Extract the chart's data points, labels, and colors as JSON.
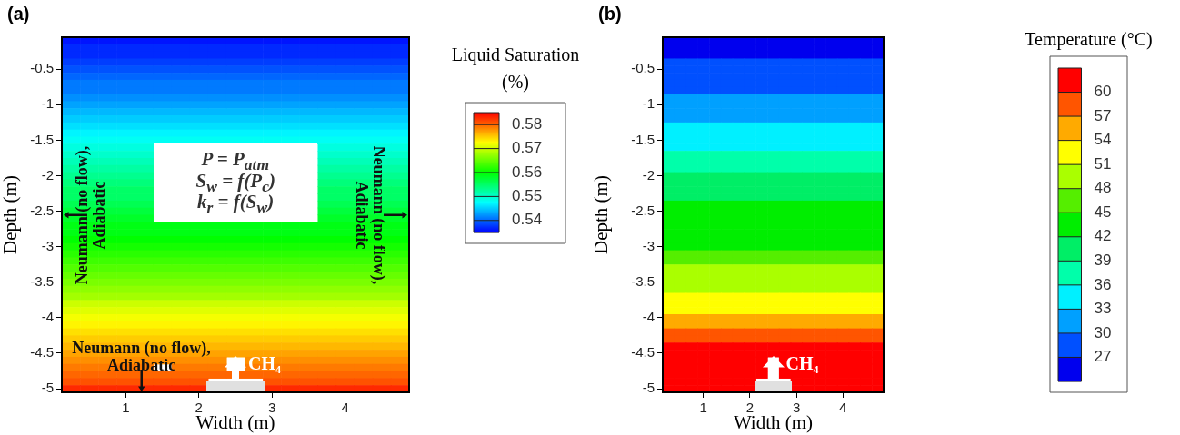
{
  "chart_data": [
    {
      "type": "heatmap",
      "title": "(a)",
      "xlabel": "Width (m)",
      "ylabel": "Depth (m)",
      "clabel": "Liquid Saturation (%)",
      "categories": [
        null,
        null,
        null,
        "1",
        null,
        null,
        null,
        "2",
        null,
        null,
        null,
        "3",
        null,
        null,
        null,
        "4",
        null,
        null,
        null
      ],
      "y_categories": [
        null,
        null,
        null,
        null,
        "-0.5",
        null,
        null,
        null,
        null,
        "-1",
        null,
        null,
        null,
        null,
        "-1.5",
        null,
        null,
        null,
        null,
        "-2",
        null,
        null,
        null,
        null,
        "-2.5",
        null,
        null,
        null,
        null,
        "-3",
        null,
        null,
        null,
        null,
        "-3.5",
        null,
        null,
        null,
        null,
        "-4",
        null,
        null,
        null,
        null,
        "-4.5",
        null,
        null,
        null,
        null,
        "-5"
      ],
      "cells": [
        [
          0.536,
          0.536,
          0.536,
          0.536,
          0.536,
          0.536,
          0.536,
          0.536,
          0.536,
          0.536,
          0.536,
          0.536,
          0.536,
          0.536,
          0.536,
          0.536,
          0.536,
          0.536,
          0.536
        ],
        [
          0.537,
          0.537,
          0.537,
          0.537,
          0.537,
          0.537,
          0.537,
          0.537,
          0.537,
          0.537,
          0.537,
          0.537,
          0.537,
          0.537,
          0.537,
          0.537,
          0.537,
          0.537,
          0.537
        ],
        [
          0.537,
          0.537,
          0.537,
          0.537,
          0.537,
          0.537,
          0.537,
          0.537,
          0.537,
          0.537,
          0.537,
          0.537,
          0.537,
          0.537,
          0.537,
          0.537,
          0.537,
          0.537,
          0.537
        ],
        [
          0.538,
          0.538,
          0.538,
          0.538,
          0.538,
          0.538,
          0.538,
          0.538,
          0.538,
          0.538,
          0.538,
          0.538,
          0.538,
          0.538,
          0.538,
          0.538,
          0.538,
          0.538,
          0.538
        ],
        [
          0.539,
          0.539,
          0.539,
          0.539,
          0.539,
          0.539,
          0.539,
          0.539,
          0.539,
          0.539,
          0.539,
          0.539,
          0.539,
          0.539,
          0.539,
          0.539,
          0.539,
          0.539,
          0.539
        ],
        [
          0.54,
          0.54,
          0.54,
          0.54,
          0.54,
          0.54,
          0.54,
          0.54,
          0.54,
          0.54,
          0.54,
          0.54,
          0.54,
          0.54,
          0.54,
          0.54,
          0.54,
          0.54,
          0.54
        ],
        [
          0.541,
          0.541,
          0.541,
          0.541,
          0.541,
          0.541,
          0.541,
          0.541,
          0.541,
          0.541,
          0.541,
          0.541,
          0.541,
          0.541,
          0.541,
          0.541,
          0.541,
          0.541,
          0.541
        ],
        [
          0.541,
          0.541,
          0.541,
          0.541,
          0.541,
          0.541,
          0.541,
          0.541,
          0.541,
          0.541,
          0.541,
          0.541,
          0.541,
          0.541,
          0.541,
          0.541,
          0.541,
          0.541,
          0.541
        ],
        [
          0.542,
          0.542,
          0.542,
          0.542,
          0.542,
          0.542,
          0.542,
          0.542,
          0.542,
          0.542,
          0.542,
          0.542,
          0.542,
          0.542,
          0.542,
          0.542,
          0.542,
          0.542,
          0.542
        ],
        [
          0.543,
          0.543,
          0.543,
          0.543,
          0.543,
          0.543,
          0.543,
          0.543,
          0.543,
          0.543,
          0.543,
          0.543,
          0.543,
          0.543,
          0.543,
          0.543,
          0.543,
          0.543,
          0.543
        ],
        [
          0.544,
          0.544,
          0.544,
          0.544,
          0.544,
          0.544,
          0.544,
          0.544,
          0.544,
          0.544,
          0.544,
          0.544,
          0.544,
          0.544,
          0.544,
          0.544,
          0.544,
          0.544,
          0.544
        ],
        [
          0.545,
          0.545,
          0.545,
          0.545,
          0.545,
          0.545,
          0.545,
          0.545,
          0.545,
          0.545,
          0.545,
          0.545,
          0.545,
          0.545,
          0.545,
          0.545,
          0.545,
          0.545,
          0.545
        ],
        [
          0.546,
          0.546,
          0.546,
          0.546,
          0.546,
          0.546,
          0.546,
          0.546,
          0.546,
          0.546,
          0.546,
          0.546,
          0.546,
          0.546,
          0.546,
          0.546,
          0.546,
          0.546,
          0.546
        ],
        [
          0.547,
          0.547,
          0.547,
          0.547,
          0.547,
          0.547,
          0.547,
          0.547,
          0.547,
          0.547,
          0.547,
          0.547,
          0.547,
          0.547,
          0.547,
          0.547,
          0.547,
          0.547,
          0.547
        ],
        [
          0.548,
          0.548,
          0.548,
          0.548,
          0.548,
          0.548,
          0.548,
          0.548,
          0.548,
          0.548,
          0.548,
          0.548,
          0.548,
          0.548,
          0.548,
          0.548,
          0.548,
          0.548,
          0.548
        ],
        [
          0.549,
          0.549,
          0.549,
          0.549,
          0.549,
          null,
          null,
          null,
          null,
          null,
          null,
          null,
          null,
          null,
          0.549,
          0.549,
          0.549,
          0.549,
          0.549
        ],
        [
          0.55,
          0.55,
          0.55,
          0.55,
          0.55,
          null,
          null,
          null,
          null,
          null,
          null,
          null,
          null,
          null,
          0.55,
          0.55,
          0.55,
          0.55,
          0.55
        ],
        [
          0.551,
          0.551,
          0.551,
          0.551,
          0.551,
          null,
          null,
          null,
          null,
          null,
          null,
          null,
          null,
          null,
          0.551,
          0.551,
          0.551,
          0.551,
          0.551
        ],
        [
          0.552,
          0.552,
          0.552,
          0.552,
          0.552,
          null,
          null,
          null,
          null,
          null,
          null,
          null,
          null,
          null,
          0.552,
          0.552,
          0.552,
          0.552,
          0.552
        ],
        [
          0.553,
          0.553,
          0.553,
          0.553,
          0.553,
          null,
          null,
          null,
          null,
          null,
          null,
          null,
          null,
          null,
          0.553,
          0.553,
          0.553,
          0.553,
          0.553
        ],
        [
          0.554,
          0.554,
          0.554,
          0.554,
          0.554,
          null,
          null,
          null,
          null,
          null,
          null,
          null,
          null,
          null,
          0.554,
          0.554,
          0.554,
          0.554,
          0.554
        ],
        [
          0.555,
          0.555,
          0.555,
          0.555,
          0.555,
          null,
          null,
          null,
          null,
          null,
          null,
          null,
          null,
          null,
          0.555,
          0.555,
          0.555,
          0.555,
          0.555
        ],
        [
          0.555,
          0.555,
          0.555,
          0.555,
          0.555,
          null,
          null,
          null,
          null,
          null,
          null,
          null,
          null,
          null,
          0.555,
          0.555,
          0.555,
          0.555,
          0.555
        ],
        [
          0.556,
          0.556,
          0.556,
          0.556,
          0.556,
          null,
          null,
          null,
          null,
          null,
          null,
          null,
          null,
          null,
          0.556,
          0.556,
          0.556,
          0.556,
          0.556
        ],
        [
          0.557,
          0.557,
          0.557,
          0.557,
          0.557,
          null,
          null,
          null,
          null,
          null,
          null,
          null,
          null,
          null,
          0.557,
          0.557,
          0.557,
          0.557,
          0.557
        ],
        [
          0.558,
          0.558,
          0.558,
          0.558,
          0.558,
          null,
          null,
          null,
          null,
          null,
          null,
          null,
          null,
          null,
          0.558,
          0.558,
          0.558,
          0.558,
          0.558
        ],
        [
          0.559,
          0.559,
          0.559,
          0.559,
          0.559,
          0.559,
          0.559,
          0.559,
          0.559,
          0.559,
          0.559,
          0.559,
          0.559,
          0.559,
          0.559,
          0.559,
          0.559,
          0.559,
          0.559
        ],
        [
          0.559,
          0.559,
          0.559,
          0.559,
          0.559,
          0.559,
          0.559,
          0.559,
          0.559,
          0.559,
          0.559,
          0.559,
          0.559,
          0.559,
          0.559,
          0.559,
          0.559,
          0.559,
          0.559
        ],
        [
          0.56,
          0.56,
          0.56,
          0.56,
          0.56,
          0.56,
          0.56,
          0.56,
          0.56,
          0.56,
          0.56,
          0.56,
          0.56,
          0.56,
          0.56,
          0.56,
          0.56,
          0.56,
          0.56
        ],
        [
          0.561,
          0.561,
          0.561,
          0.561,
          0.561,
          0.561,
          0.561,
          0.561,
          0.561,
          0.561,
          0.561,
          0.561,
          0.561,
          0.561,
          0.561,
          0.561,
          0.561,
          0.561,
          0.561
        ],
        [
          0.562,
          0.562,
          0.562,
          0.562,
          0.562,
          0.562,
          0.562,
          0.562,
          0.562,
          0.562,
          0.562,
          0.562,
          0.562,
          0.562,
          0.562,
          0.562,
          0.562,
          0.562,
          0.562
        ],
        [
          0.563,
          0.563,
          0.563,
          0.563,
          0.563,
          0.563,
          0.563,
          0.563,
          0.563,
          0.563,
          0.563,
          0.563,
          0.563,
          0.563,
          0.563,
          0.563,
          0.563,
          0.563,
          0.563
        ],
        [
          0.564,
          0.564,
          0.564,
          0.564,
          0.564,
          0.564,
          0.564,
          0.564,
          0.564,
          0.564,
          0.564,
          0.564,
          0.564,
          0.564,
          0.564,
          0.564,
          0.564,
          0.564,
          0.564
        ],
        [
          0.565,
          0.565,
          0.565,
          0.565,
          0.565,
          0.565,
          0.565,
          0.565,
          0.565,
          0.565,
          0.565,
          0.565,
          0.565,
          0.565,
          0.565,
          0.565,
          0.565,
          0.565,
          0.565
        ],
        [
          0.566,
          0.566,
          0.566,
          0.566,
          0.566,
          0.566,
          0.566,
          0.566,
          0.566,
          0.566,
          0.566,
          0.566,
          0.566,
          0.566,
          0.566,
          0.566,
          0.566,
          0.566,
          0.566
        ],
        [
          0.567,
          0.567,
          0.567,
          0.567,
          0.567,
          0.567,
          0.567,
          0.567,
          0.567,
          0.567,
          0.567,
          0.567,
          0.567,
          0.567,
          0.567,
          0.567,
          0.567,
          0.567,
          0.567
        ],
        [
          0.568,
          0.568,
          0.568,
          0.568,
          0.568,
          0.568,
          0.568,
          0.568,
          0.568,
          0.568,
          0.568,
          0.568,
          0.568,
          0.568,
          0.568,
          0.568,
          0.568,
          0.568,
          0.568
        ],
        [
          0.57,
          0.57,
          0.57,
          0.57,
          0.57,
          0.57,
          0.57,
          0.57,
          0.57,
          0.57,
          0.57,
          0.57,
          0.57,
          0.57,
          0.57,
          0.57,
          0.57,
          0.57,
          0.57
        ],
        [
          0.571,
          0.571,
          0.571,
          0.571,
          0.571,
          0.571,
          0.571,
          0.571,
          0.571,
          0.571,
          0.571,
          0.571,
          0.571,
          0.571,
          0.571,
          0.571,
          0.571,
          0.571,
          0.571
        ],
        [
          0.572,
          0.572,
          0.572,
          0.572,
          0.572,
          0.572,
          0.572,
          0.572,
          0.572,
          0.572,
          0.572,
          0.572,
          0.572,
          0.572,
          0.572,
          0.572,
          0.572,
          0.572,
          0.572
        ],
        [
          0.573,
          0.573,
          0.573,
          0.573,
          0.573,
          0.573,
          0.573,
          0.573,
          0.573,
          0.573,
          0.573,
          0.573,
          0.573,
          0.573,
          0.573,
          0.573,
          0.573,
          0.573,
          0.573
        ],
        [
          0.574,
          0.574,
          0.574,
          0.574,
          0.574,
          0.574,
          0.574,
          0.574,
          0.574,
          0.574,
          0.574,
          0.574,
          0.574,
          0.574,
          0.574,
          0.574,
          0.574,
          0.574,
          0.574
        ],
        [
          0.575,
          0.575,
          0.575,
          0.575,
          0.575,
          0.575,
          0.575,
          0.575,
          0.575,
          0.575,
          0.575,
          0.575,
          0.575,
          0.575,
          0.575,
          0.575,
          0.575,
          0.575,
          0.575
        ],
        [
          0.576,
          0.576,
          0.576,
          0.576,
          0.576,
          0.576,
          0.576,
          0.576,
          0.576,
          0.576,
          0.576,
          0.576,
          0.576,
          0.576,
          0.576,
          0.576,
          0.576,
          0.576,
          0.576
        ],
        [
          0.577,
          0.577,
          0.577,
          0.577,
          0.577,
          0.577,
          0.577,
          0.577,
          0.577,
          0.577,
          0.577,
          0.577,
          0.577,
          0.577,
          0.577,
          0.577,
          0.577,
          0.577,
          0.577
        ],
        [
          0.578,
          0.578,
          0.578,
          0.578,
          0.578,
          0.578,
          0.578,
          0.578,
          0.578,
          null,
          0.578,
          0.578,
          0.578,
          0.578,
          0.578,
          0.578,
          0.578,
          0.578,
          0.578
        ],
        [
          0.579,
          0.579,
          0.579,
          0.579,
          0.579,
          null,
          0.579,
          0.579,
          0.579,
          null,
          0.579,
          0.579,
          0.579,
          0.579,
          0.579,
          0.579,
          0.579,
          0.579,
          0.579
        ],
        [
          0.58,
          0.58,
          0.58,
          0.58,
          0.58,
          0.58,
          0.58,
          0.58,
          0.58,
          0.58,
          0.58,
          0.58,
          0.58,
          0.58,
          0.58,
          0.58,
          0.58,
          0.58,
          0.58
        ],
        [
          0.581,
          0.581,
          0.581,
          0.581,
          0.581,
          0.581,
          0.581,
          0.581,
          null,
          null,
          null,
          0.581,
          0.581,
          0.581,
          0.581,
          0.581,
          0.581,
          0.581,
          0.581
        ],
        [
          0.583,
          0.583,
          0.583,
          0.583,
          0.583,
          0.583,
          0.583,
          0.583,
          null,
          null,
          null,
          0.583,
          0.583,
          0.583,
          0.583,
          0.583,
          0.583,
          0.583,
          0.583
        ]
      ],
      "clim": [
        0.535,
        0.585
      ],
      "cticks": [
        0.54,
        0.55,
        0.56,
        0.57,
        0.58
      ],
      "colors": [
        "#0000ff",
        "#00ffff",
        "#00ff00",
        "#ffff00",
        "#ff0000"
      ],
      "annotations": [
        "Neumann (no flow), Adiabatic",
        "Neumann (no flow), Adiabatic",
        "Neumann (no flow), Adiabatic",
        "CH₄",
        "P = P$_{atm}$",
        "S$_{w}$ = f(P$_{c}$)",
        "k$_{r}$ = f(S$_{w}$)"
      ]
    },
    {
      "type": "heatmap",
      "title": "(b)",
      "xlabel": "Width (m)",
      "ylabel": "Depth (m)",
      "clabel": "Temperature (°C)",
      "categories": [
        null,
        null,
        null,
        "1",
        null,
        null,
        null,
        "2",
        null,
        null,
        null,
        "3",
        null,
        null,
        null,
        "4",
        null,
        null,
        null
      ],
      "y_categories": [
        null,
        null,
        null,
        null,
        "-0.5",
        null,
        null,
        null,
        null,
        "-1",
        null,
        null,
        null,
        null,
        "-1.5",
        null,
        null,
        null,
        null,
        "-2",
        null,
        null,
        null,
        null,
        "-2.5",
        null,
        null,
        null,
        null,
        "-3",
        null,
        null,
        null,
        null,
        "-3.5",
        null,
        null,
        null,
        null,
        "-4",
        null,
        null,
        null,
        null,
        "-4.5",
        null,
        null,
        null,
        null,
        "-5"
      ],
      "cells": [
        [
          25.5,
          25.5,
          25.5,
          25.5,
          25.5,
          25.5,
          25.5,
          25.5,
          25.5,
          25.5,
          25.5,
          25.5,
          25.5,
          25.5,
          25.5,
          25.5,
          25.5,
          25.5,
          25.5
        ],
        [
          25.5,
          25.5,
          25.5,
          25.5,
          25.5,
          25.5,
          25.5,
          25.5,
          25.5,
          25.5,
          25.5,
          25.5,
          25.5,
          25.5,
          25.5,
          25.5,
          25.5,
          25.5,
          25.5
        ],
        [
          25.5,
          25.5,
          25.5,
          25.5,
          25.5,
          25.5,
          25.5,
          25.5,
          25.5,
          25.5,
          25.5,
          25.5,
          25.5,
          25.5,
          25.5,
          25.5,
          25.5,
          25.5,
          25.5
        ],
        [
          28.5,
          28.5,
          28.5,
          28.5,
          28.5,
          28.5,
          28.5,
          28.5,
          28.5,
          28.5,
          28.5,
          28.5,
          28.5,
          28.5,
          28.5,
          28.5,
          28.5,
          28.5,
          28.5
        ],
        [
          28.5,
          28.5,
          28.5,
          28.5,
          28.5,
          28.5,
          28.5,
          28.5,
          28.5,
          28.5,
          28.5,
          28.5,
          28.5,
          28.5,
          28.5,
          28.5,
          28.5,
          28.5,
          28.5
        ],
        [
          28.5,
          28.5,
          28.5,
          28.5,
          28.5,
          28.5,
          28.5,
          28.5,
          28.5,
          28.5,
          28.5,
          28.5,
          28.5,
          28.5,
          28.5,
          28.5,
          28.5,
          28.5,
          28.5
        ],
        [
          28.5,
          28.5,
          28.5,
          28.5,
          28.5,
          28.5,
          28.5,
          28.5,
          28.5,
          28.5,
          28.5,
          28.5,
          28.5,
          28.5,
          28.5,
          28.5,
          28.5,
          28.5,
          28.5
        ],
        [
          28.5,
          28.5,
          28.5,
          28.5,
          28.5,
          28.5,
          28.5,
          28.5,
          28.5,
          28.5,
          28.5,
          28.5,
          28.5,
          28.5,
          28.5,
          28.5,
          28.5,
          28.5,
          28.5
        ],
        [
          31.5,
          31.5,
          31.5,
          31.5,
          31.5,
          31.5,
          31.5,
          31.5,
          31.5,
          31.5,
          31.5,
          31.5,
          31.5,
          31.5,
          31.5,
          31.5,
          31.5,
          31.5,
          31.5
        ],
        [
          31.5,
          31.5,
          31.5,
          31.5,
          31.5,
          31.5,
          31.5,
          31.5,
          31.5,
          31.5,
          31.5,
          31.5,
          31.5,
          31.5,
          31.5,
          31.5,
          31.5,
          31.5,
          31.5
        ],
        [
          31.5,
          31.5,
          31.5,
          31.5,
          31.5,
          31.5,
          31.5,
          31.5,
          31.5,
          31.5,
          31.5,
          31.5,
          31.5,
          31.5,
          31.5,
          31.5,
          31.5,
          31.5,
          31.5
        ],
        [
          31.5,
          31.5,
          31.5,
          31.5,
          31.5,
          31.5,
          31.5,
          31.5,
          31.5,
          31.5,
          31.5,
          31.5,
          31.5,
          31.5,
          31.5,
          31.5,
          31.5,
          31.5,
          31.5
        ],
        [
          34.5,
          34.5,
          34.5,
          34.5,
          34.5,
          34.5,
          34.5,
          34.5,
          34.5,
          34.5,
          34.5,
          34.5,
          34.5,
          34.5,
          34.5,
          34.5,
          34.5,
          34.5,
          34.5
        ],
        [
          34.5,
          34.5,
          34.5,
          34.5,
          34.5,
          34.5,
          34.5,
          34.5,
          34.5,
          34.5,
          34.5,
          34.5,
          34.5,
          34.5,
          34.5,
          34.5,
          34.5,
          34.5,
          34.5
        ],
        [
          34.5,
          34.5,
          34.5,
          34.5,
          34.5,
          34.5,
          34.5,
          34.5,
          34.5,
          34.5,
          34.5,
          34.5,
          34.5,
          34.5,
          34.5,
          34.5,
          34.5,
          34.5,
          34.5
        ],
        [
          34.5,
          34.5,
          34.5,
          34.5,
          34.5,
          34.5,
          34.5,
          34.5,
          34.5,
          34.5,
          34.5,
          34.5,
          34.5,
          34.5,
          34.5,
          34.5,
          34.5,
          34.5,
          34.5
        ],
        [
          37.5,
          37.5,
          37.5,
          37.5,
          37.5,
          37.5,
          37.5,
          37.5,
          37.5,
          37.5,
          37.5,
          37.5,
          37.5,
          37.5,
          37.5,
          37.5,
          37.5,
          37.5,
          37.5
        ],
        [
          37.5,
          37.5,
          37.5,
          37.5,
          37.5,
          37.5,
          37.5,
          37.5,
          37.5,
          37.5,
          37.5,
          37.5,
          37.5,
          37.5,
          37.5,
          37.5,
          37.5,
          37.5,
          37.5
        ],
        [
          37.5,
          37.5,
          37.5,
          37.5,
          37.5,
          37.5,
          37.5,
          37.5,
          37.5,
          37.5,
          37.5,
          37.5,
          37.5,
          37.5,
          37.5,
          37.5,
          37.5,
          37.5,
          37.5
        ],
        [
          40.5,
          40.5,
          40.5,
          40.5,
          40.5,
          40.5,
          40.5,
          40.5,
          40.5,
          40.5,
          40.5,
          40.5,
          40.5,
          40.5,
          40.5,
          40.5,
          40.5,
          40.5,
          40.5
        ],
        [
          40.5,
          40.5,
          40.5,
          40.5,
          40.5,
          40.5,
          40.5,
          40.5,
          40.5,
          40.5,
          40.5,
          40.5,
          40.5,
          40.5,
          40.5,
          40.5,
          40.5,
          40.5,
          40.5
        ],
        [
          40.5,
          40.5,
          40.5,
          40.5,
          40.5,
          40.5,
          40.5,
          40.5,
          40.5,
          40.5,
          40.5,
          40.5,
          40.5,
          40.5,
          40.5,
          40.5,
          40.5,
          40.5,
          40.5
        ],
        [
          40.5,
          40.5,
          40.5,
          40.5,
          40.5,
          40.5,
          40.5,
          40.5,
          40.5,
          40.5,
          40.5,
          40.5,
          40.5,
          40.5,
          40.5,
          40.5,
          40.5,
          40.5,
          40.5
        ],
        [
          43.5,
          43.5,
          43.5,
          43.5,
          43.5,
          43.5,
          43.5,
          43.5,
          43.5,
          43.5,
          43.5,
          43.5,
          43.5,
          43.5,
          43.5,
          43.5,
          43.5,
          43.5,
          43.5
        ],
        [
          43.5,
          43.5,
          43.5,
          43.5,
          43.5,
          43.5,
          43.5,
          43.5,
          43.5,
          43.5,
          43.5,
          43.5,
          43.5,
          43.5,
          43.5,
          43.5,
          43.5,
          43.5,
          43.5
        ],
        [
          43.5,
          43.5,
          43.5,
          43.5,
          43.5,
          43.5,
          43.5,
          43.5,
          43.5,
          43.5,
          43.5,
          43.5,
          43.5,
          43.5,
          43.5,
          43.5,
          43.5,
          43.5,
          43.5
        ],
        [
          43.5,
          43.5,
          43.5,
          43.5,
          43.5,
          43.5,
          43.5,
          43.5,
          43.5,
          43.5,
          43.5,
          43.5,
          43.5,
          43.5,
          43.5,
          43.5,
          43.5,
          43.5,
          43.5
        ],
        [
          43.5,
          43.5,
          43.5,
          43.5,
          43.5,
          43.5,
          43.5,
          43.5,
          43.5,
          43.5,
          43.5,
          43.5,
          43.5,
          43.5,
          43.5,
          43.5,
          43.5,
          43.5,
          43.5
        ],
        [
          43.5,
          43.5,
          43.5,
          43.5,
          43.5,
          43.5,
          43.5,
          43.5,
          43.5,
          43.5,
          43.5,
          43.5,
          43.5,
          43.5,
          43.5,
          43.5,
          43.5,
          43.5,
          43.5
        ],
        [
          43.5,
          43.5,
          43.5,
          43.5,
          43.5,
          43.5,
          43.5,
          43.5,
          43.5,
          43.5,
          43.5,
          43.5,
          43.5,
          43.5,
          43.5,
          43.5,
          43.5,
          43.5,
          43.5
        ],
        [
          46.5,
          46.5,
          46.5,
          46.5,
          46.5,
          46.5,
          46.5,
          46.5,
          46.5,
          46.5,
          46.5,
          46.5,
          46.5,
          46.5,
          46.5,
          46.5,
          46.5,
          46.5,
          46.5
        ],
        [
          46.5,
          46.5,
          46.5,
          46.5,
          46.5,
          46.5,
          46.5,
          46.5,
          46.5,
          46.5,
          46.5,
          46.5,
          46.5,
          46.5,
          46.5,
          46.5,
          46.5,
          46.5,
          46.5
        ],
        [
          49.5,
          49.5,
          49.5,
          49.5,
          49.5,
          49.5,
          49.5,
          49.5,
          49.5,
          49.5,
          49.5,
          49.5,
          49.5,
          49.5,
          49.5,
          49.5,
          49.5,
          49.5,
          49.5
        ],
        [
          49.5,
          49.5,
          49.5,
          49.5,
          49.5,
          49.5,
          49.5,
          49.5,
          49.5,
          49.5,
          49.5,
          49.5,
          49.5,
          49.5,
          49.5,
          49.5,
          49.5,
          49.5,
          49.5
        ],
        [
          49.5,
          49.5,
          49.5,
          49.5,
          49.5,
          49.5,
          49.5,
          49.5,
          49.5,
          49.5,
          49.5,
          49.5,
          49.5,
          49.5,
          49.5,
          49.5,
          49.5,
          49.5,
          49.5
        ],
        [
          49.5,
          49.5,
          49.5,
          49.5,
          49.5,
          49.5,
          49.5,
          49.5,
          49.5,
          49.5,
          49.5,
          49.5,
          49.5,
          49.5,
          49.5,
          49.5,
          49.5,
          49.5,
          49.5
        ],
        [
          52.5,
          52.5,
          52.5,
          52.5,
          52.5,
          52.5,
          52.5,
          52.5,
          52.5,
          52.5,
          52.5,
          52.5,
          52.5,
          52.5,
          52.5,
          52.5,
          52.5,
          52.5,
          52.5
        ],
        [
          52.5,
          52.5,
          52.5,
          52.5,
          52.5,
          52.5,
          52.5,
          52.5,
          52.5,
          52.5,
          52.5,
          52.5,
          52.5,
          52.5,
          52.5,
          52.5,
          52.5,
          52.5,
          52.5
        ],
        [
          52.5,
          52.5,
          52.5,
          52.5,
          52.5,
          52.5,
          52.5,
          52.5,
          52.5,
          52.5,
          52.5,
          52.5,
          52.5,
          52.5,
          52.5,
          52.5,
          52.5,
          52.5,
          52.5
        ],
        [
          55.5,
          55.5,
          55.5,
          55.5,
          55.5,
          55.5,
          55.5,
          55.5,
          55.5,
          55.5,
          55.5,
          55.5,
          55.5,
          55.5,
          55.5,
          55.5,
          55.5,
          55.5,
          55.5
        ],
        [
          55.5,
          55.5,
          55.5,
          55.5,
          55.5,
          55.5,
          55.5,
          55.5,
          55.5,
          55.5,
          55.5,
          55.5,
          55.5,
          55.5,
          55.5,
          55.5,
          55.5,
          55.5,
          55.5
        ],
        [
          58.5,
          58.5,
          58.5,
          58.5,
          58.5,
          58.5,
          58.5,
          58.5,
          58.5,
          58.5,
          58.5,
          58.5,
          58.5,
          58.5,
          58.5,
          58.5,
          58.5,
          58.5,
          58.5
        ],
        [
          58.5,
          58.5,
          58.5,
          58.5,
          58.5,
          58.5,
          58.5,
          58.5,
          58.5,
          58.5,
          58.5,
          58.5,
          58.5,
          58.5,
          58.5,
          58.5,
          58.5,
          58.5,
          58.5
        ],
        [
          61.5,
          61.5,
          61.5,
          61.5,
          61.5,
          61.5,
          61.5,
          61.5,
          61.5,
          61.5,
          61.5,
          61.5,
          61.5,
          61.5,
          61.5,
          61.5,
          61.5,
          61.5,
          61.5
        ],
        [
          61.5,
          61.5,
          61.5,
          61.5,
          61.5,
          61.5,
          61.5,
          61.5,
          61.5,
          61.5,
          61.5,
          61.5,
          61.5,
          61.5,
          61.5,
          61.5,
          61.5,
          61.5,
          61.5
        ],
        [
          61.5,
          61.5,
          61.5,
          61.5,
          61.5,
          61.5,
          61.5,
          61.5,
          61.5,
          null,
          61.5,
          61.5,
          61.5,
          61.5,
          61.5,
          61.5,
          61.5,
          61.5,
          61.5
        ],
        [
          61.5,
          61.5,
          61.5,
          61.5,
          61.5,
          61.5,
          61.5,
          61.5,
          61.5,
          null,
          61.5,
          61.5,
          61.5,
          61.5,
          61.5,
          61.5,
          61.5,
          61.5,
          61.5
        ],
        [
          61.5,
          61.5,
          61.5,
          61.5,
          61.5,
          61.5,
          61.5,
          61.5,
          61.5,
          null,
          61.5,
          61.5,
          61.5,
          61.5,
          61.5,
          61.5,
          61.5,
          61.5,
          61.5
        ],
        [
          61.5,
          61.5,
          61.5,
          61.5,
          61.5,
          61.5,
          61.5,
          61.5,
          null,
          null,
          null,
          61.5,
          61.5,
          61.5,
          61.5,
          61.5,
          61.5,
          61.5,
          61.5
        ],
        [
          61.5,
          61.5,
          61.5,
          61.5,
          61.5,
          61.5,
          61.5,
          61.5,
          null,
          null,
          null,
          61.5,
          61.5,
          61.5,
          61.5,
          61.5,
          61.5,
          61.5,
          61.5
        ]
      ],
      "clim": [
        24,
        63
      ],
      "cticks": [
        27,
        30,
        33,
        36,
        39,
        42,
        45,
        48,
        51,
        54,
        57,
        60
      ],
      "colors": [
        "#0000ee",
        "#0050ff",
        "#00a0ff",
        "#00f0ff",
        "#00ffaa",
        "#00ee66",
        "#00ee00",
        "#55ee00",
        "#aaff00",
        "#ffff00",
        "#ffaa00",
        "#ff5500",
        "#ff0000"
      ],
      "annotations": [
        "CH₄"
      ]
    }
  ]
}
